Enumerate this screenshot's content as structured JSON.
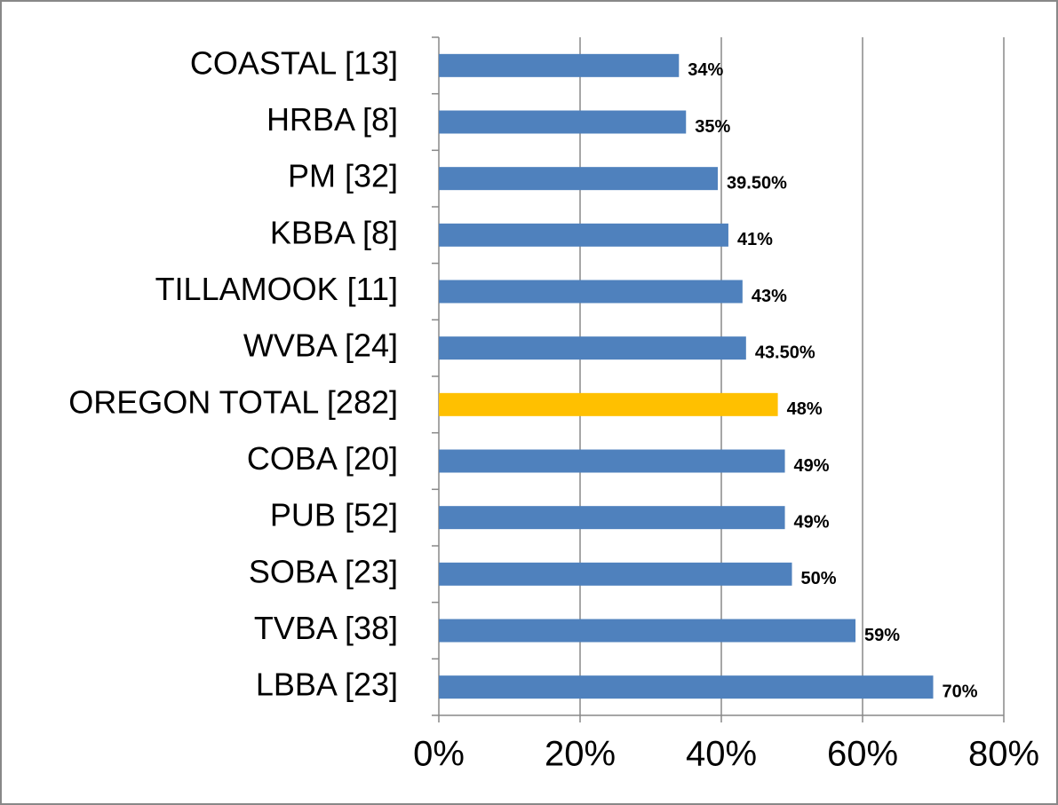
{
  "chart_data": {
    "type": "hbar",
    "categories": [
      "COASTAL [13]",
      "HRBA [8]",
      "PM [32]",
      "KBBA [8]",
      "TILLAMOOK [11]",
      "WVBA [24]",
      "OREGON TOTAL [282]",
      "COBA [20]",
      "PUB [52]",
      "SOBA [23]",
      "TVBA [38]",
      "LBBA [23]"
    ],
    "values": [
      34,
      35,
      39.5,
      41,
      43,
      43.5,
      48,
      49,
      49,
      50,
      59,
      70
    ],
    "value_labels": [
      "34%",
      "35%",
      "39.50%",
      "41%",
      "43%",
      "43.50%",
      "48%",
      "49%",
      "49%",
      "50%",
      "59%",
      "70%"
    ],
    "colors": [
      "#4f81bd",
      "#4f81bd",
      "#4f81bd",
      "#4f81bd",
      "#4f81bd",
      "#4f81bd",
      "#ffc000",
      "#4f81bd",
      "#4f81bd",
      "#4f81bd",
      "#4f81bd",
      "#4f81bd"
    ],
    "xlim": [
      0,
      80
    ],
    "xticks": [
      {
        "value": 0,
        "label": "0%"
      },
      {
        "value": 20,
        "label": "20%"
      },
      {
        "value": 40,
        "label": "40%"
      },
      {
        "value": 60,
        "label": "60%"
      },
      {
        "value": 80,
        "label": "80%"
      }
    ],
    "grid": true
  }
}
